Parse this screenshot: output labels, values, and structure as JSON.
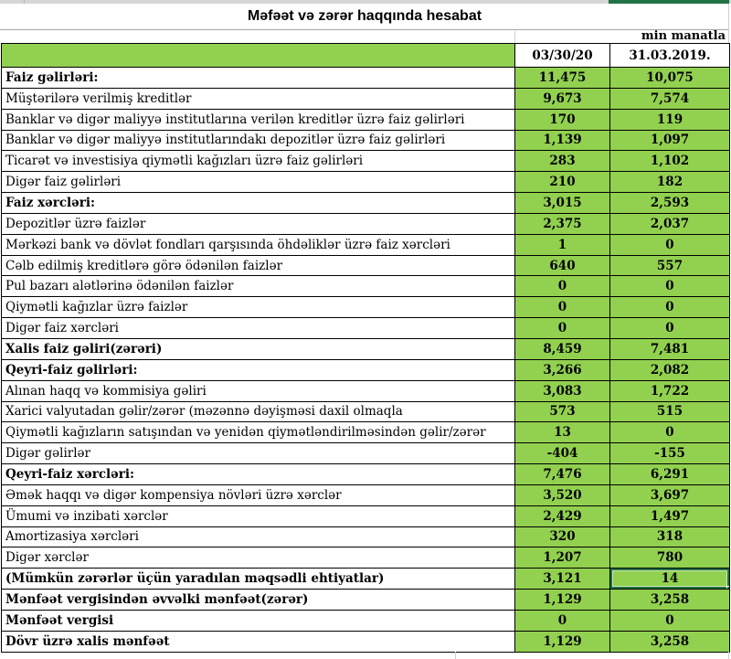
{
  "title": "Məfəət və zərər haqqında hesabat",
  "unit_note": "min manatla",
  "columns": [
    "03/30/20",
    "31.03.2019."
  ],
  "rows": [
    {
      "label": "Faiz gəlirləri:",
      "bold": true,
      "v1": "11,475",
      "v2": "10,075"
    },
    {
      "label": "Müştərilərə verilmiş kreditlər",
      "bold": false,
      "v1": "9,673",
      "v2": "7,574"
    },
    {
      "label": "Banklar və digər maliyyə institutlarına verilən kreditlər üzrə faiz gəlirləri",
      "bold": false,
      "v1": "170",
      "v2": "119"
    },
    {
      "label": "Banklar və digər maliyyə institutlarındakı depozitlər üzrə faiz gəlirləri",
      "bold": false,
      "v1": "1,139",
      "v2": "1,097"
    },
    {
      "label": "Ticarət və investisiya qiymətli kağızları üzrə faiz gəlirləri",
      "bold": false,
      "v1": "283",
      "v2": "1,102"
    },
    {
      "label": "Digər faiz gəlirləri",
      "bold": false,
      "v1": "210",
      "v2": "182"
    },
    {
      "label": "Faiz xərcləri:",
      "bold": true,
      "v1": "3,015",
      "v2": "2,593"
    },
    {
      "label": "Depozitlər üzrə faizlər",
      "bold": false,
      "v1": "2,375",
      "v2": "2,037"
    },
    {
      "label": "Mərkəzi bank və dövlət fondları qarşısında öhdəliklər üzrə faiz xərcləri",
      "bold": false,
      "v1": "1",
      "v2": "0"
    },
    {
      "label": "Cəlb edilmiş kreditlərə görə ödənilən faizlər",
      "bold": false,
      "v1": "640",
      "v2": "557"
    },
    {
      "label": "Pul bazarı alətlərinə ödənilən faizlər",
      "bold": false,
      "v1": "0",
      "v2": "0"
    },
    {
      "label": "Qiymətli kağızlar üzrə faizlər",
      "bold": false,
      "v1": "0",
      "v2": "0"
    },
    {
      "label": "Digər faiz xərcləri",
      "bold": false,
      "v1": "0",
      "v2": "0"
    },
    {
      "label": "Xalis faiz gəliri(zərəri)",
      "bold": true,
      "v1": "8,459",
      "v2": "7,481"
    },
    {
      "label": "Qeyri-faiz gəlirləri:",
      "bold": true,
      "v1": "3,266",
      "v2": "2,082"
    },
    {
      "label": "Alınan haqq və kommisiya gəliri",
      "bold": false,
      "v1": "3,083",
      "v2": "1,722"
    },
    {
      "label": "Xarici valyutadan gəlir/zərər (məzənnə dəyişməsi daxil olmaqla",
      "bold": false,
      "v1": "573",
      "v2": "515"
    },
    {
      "label": "Qiymətli kağızların satışından və yenidən qiymətləndirilməsindən gəlir/zərər",
      "bold": false,
      "v1": "13",
      "v2": "0"
    },
    {
      "label": "Digər gəlirlər",
      "bold": false,
      "v1": "-404",
      "v2": "-155"
    },
    {
      "label": "Qeyri-faiz xərcləri:",
      "bold": true,
      "v1": "7,476",
      "v2": "6,291"
    },
    {
      "label": "Əmək haqqı və digər kompensiya növləri üzrə xərclər",
      "bold": false,
      "v1": "3,520",
      "v2": "3,697"
    },
    {
      "label": "Ümumi və inzibati xərclər",
      "bold": false,
      "v1": "2,429",
      "v2": "1,497"
    },
    {
      "label": "Amortizasiya xərcləri",
      "bold": false,
      "v1": "320",
      "v2": "318"
    },
    {
      "label": "Digər xərclər",
      "bold": false,
      "v1": "1,207",
      "v2": "780"
    },
    {
      "label": "(Mümkün zərərlər üçün yaradılan məqsədli ehtiyatlar)",
      "bold": true,
      "v1": "3,121",
      "v2": "14"
    },
    {
      "label": "Mənfəət vergisindən əvvəlki mənfəət(zərər)",
      "bold": true,
      "v1": "1,129",
      "v2": "3,258"
    },
    {
      "label": "Mənfəət vergisi",
      "bold": true,
      "v1": "0",
      "v2": "0"
    },
    {
      "label": "Dövr üzrə xalis mənfəət",
      "bold": true,
      "v1": "1,129",
      "v2": "3,258"
    }
  ],
  "selection": {
    "row_index": 24,
    "column": "31.03.2019.",
    "value": "14"
  },
  "colors": {
    "cell_green": "#92d050",
    "selection_green": "#217346",
    "strip_gray": "#d6d6d6",
    "gridline": "#cfcfcf",
    "border_black": "#000000"
  }
}
